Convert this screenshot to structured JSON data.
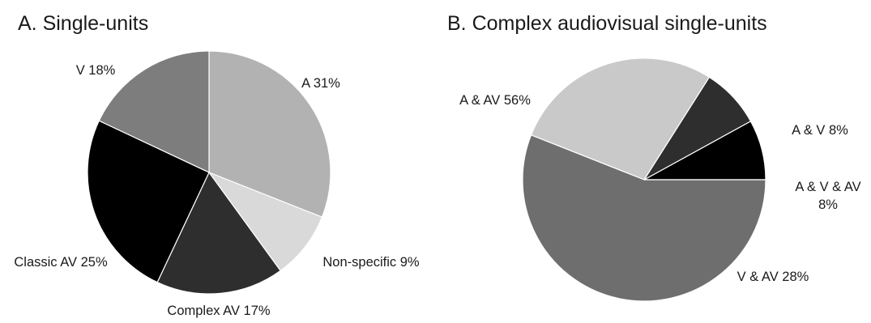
{
  "chart_data": [
    {
      "type": "pie",
      "title": "A. Single-units",
      "slices": [
        {
          "label": "A 31%",
          "value": 31,
          "color": "#b2b2b2"
        },
        {
          "label": "Non-specific 9%",
          "value": 9,
          "color": "#d9d9d9"
        },
        {
          "label": "Complex AV 17%",
          "value": 17,
          "color": "#2e2e2e"
        },
        {
          "label": "Classic AV 25%",
          "value": 25,
          "color": "#000000"
        },
        {
          "label": "V 18%",
          "value": 18,
          "color": "#7d7d7d"
        }
      ]
    },
    {
      "type": "pie",
      "title": "B. Complex audiovisual single-units",
      "slices": [
        {
          "label": "A & V 8%",
          "value": 8,
          "color": "#000000"
        },
        {
          "label": "A & V & AV\n8%",
          "value": 8,
          "color": "#2e2e2e"
        },
        {
          "label": "V & AV 28%",
          "value": 28,
          "color": "#c9c9c9"
        },
        {
          "label": "A & AV 56%",
          "value": 56,
          "color": "#6e6e6e"
        }
      ]
    }
  ]
}
